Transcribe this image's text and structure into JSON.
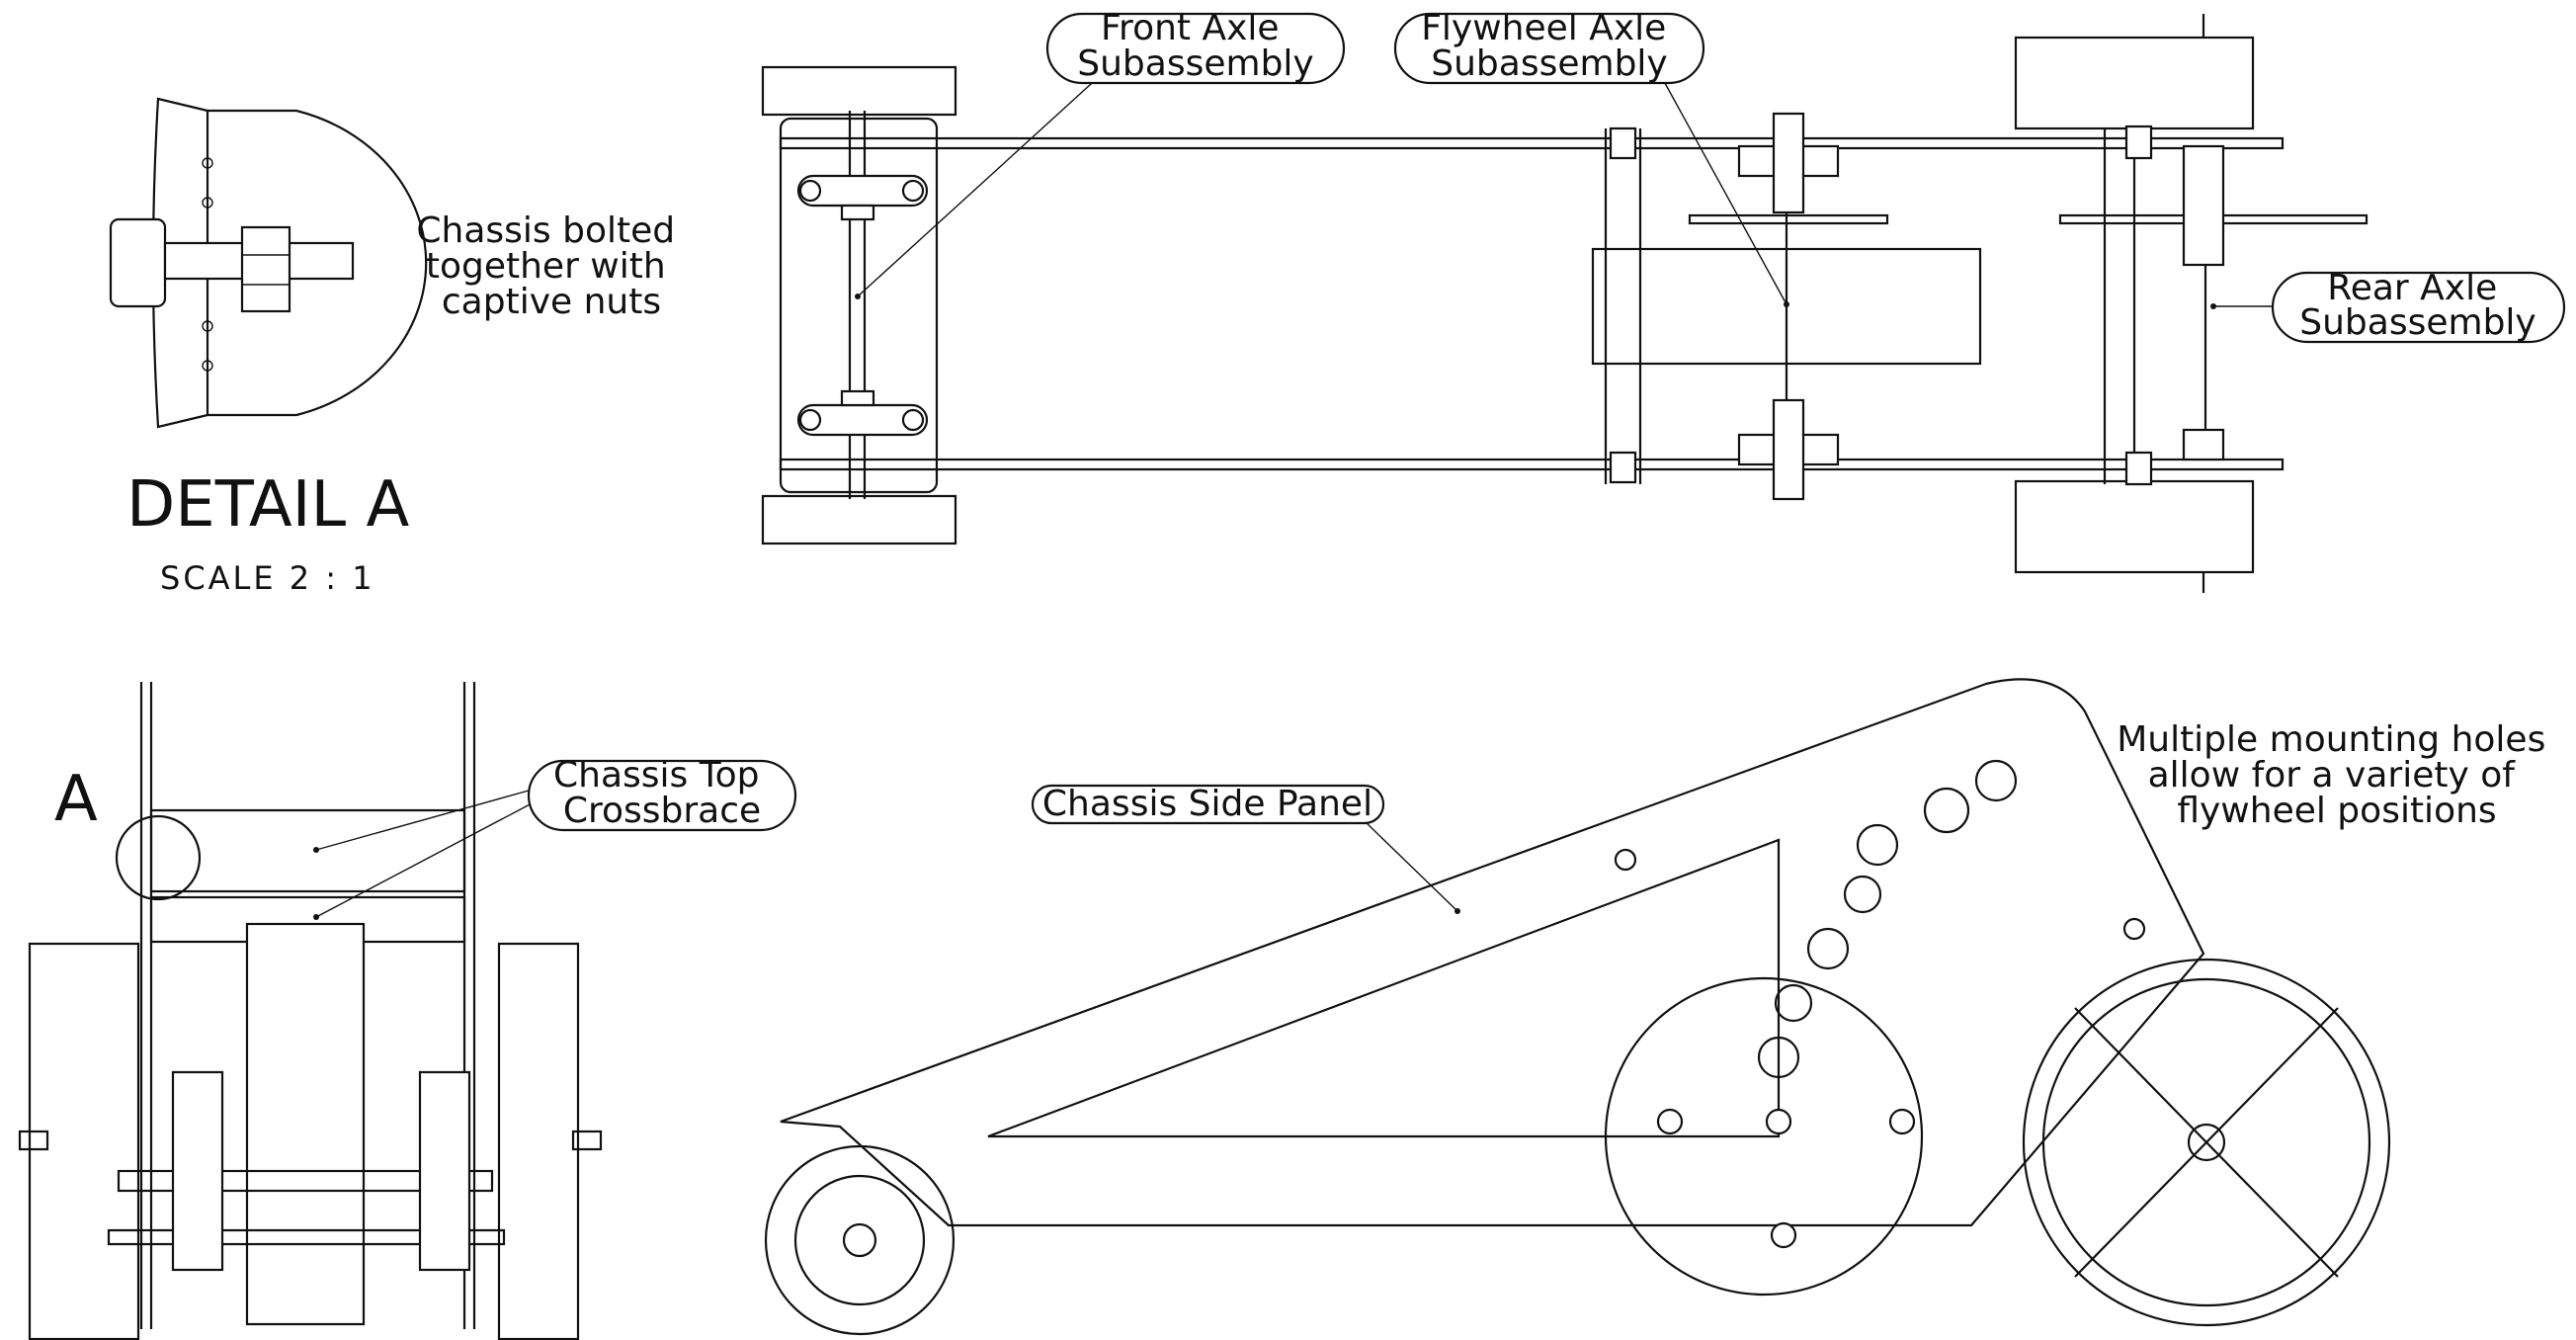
{
  "detail": {
    "title": "DETAIL A",
    "scale": "SCALE 2 : 1",
    "note_lines": [
      "Chassis bolted",
      "together with",
      "captive nuts"
    ]
  },
  "top_view": {
    "callouts": [
      {
        "id": "front-axle",
        "lines": [
          "Front Axle",
          "Subassembly"
        ]
      },
      {
        "id": "flywheel-axle",
        "lines": [
          "Flywheel Axle",
          "Subassembly"
        ]
      },
      {
        "id": "rear-axle",
        "lines": [
          "Rear Axle",
          "Subassembly"
        ]
      }
    ]
  },
  "front_view": {
    "view_letter": "A",
    "callout": {
      "id": "top-crossbrace",
      "lines": [
        "Chassis Top",
        "Crossbrace"
      ]
    }
  },
  "side_view": {
    "callout": {
      "id": "side-panel",
      "lines": [
        "Chassis Side Panel"
      ]
    },
    "note_lines": [
      "Multiple mounting holes",
      "allow for a variety of",
      "flywheel positions"
    ]
  }
}
